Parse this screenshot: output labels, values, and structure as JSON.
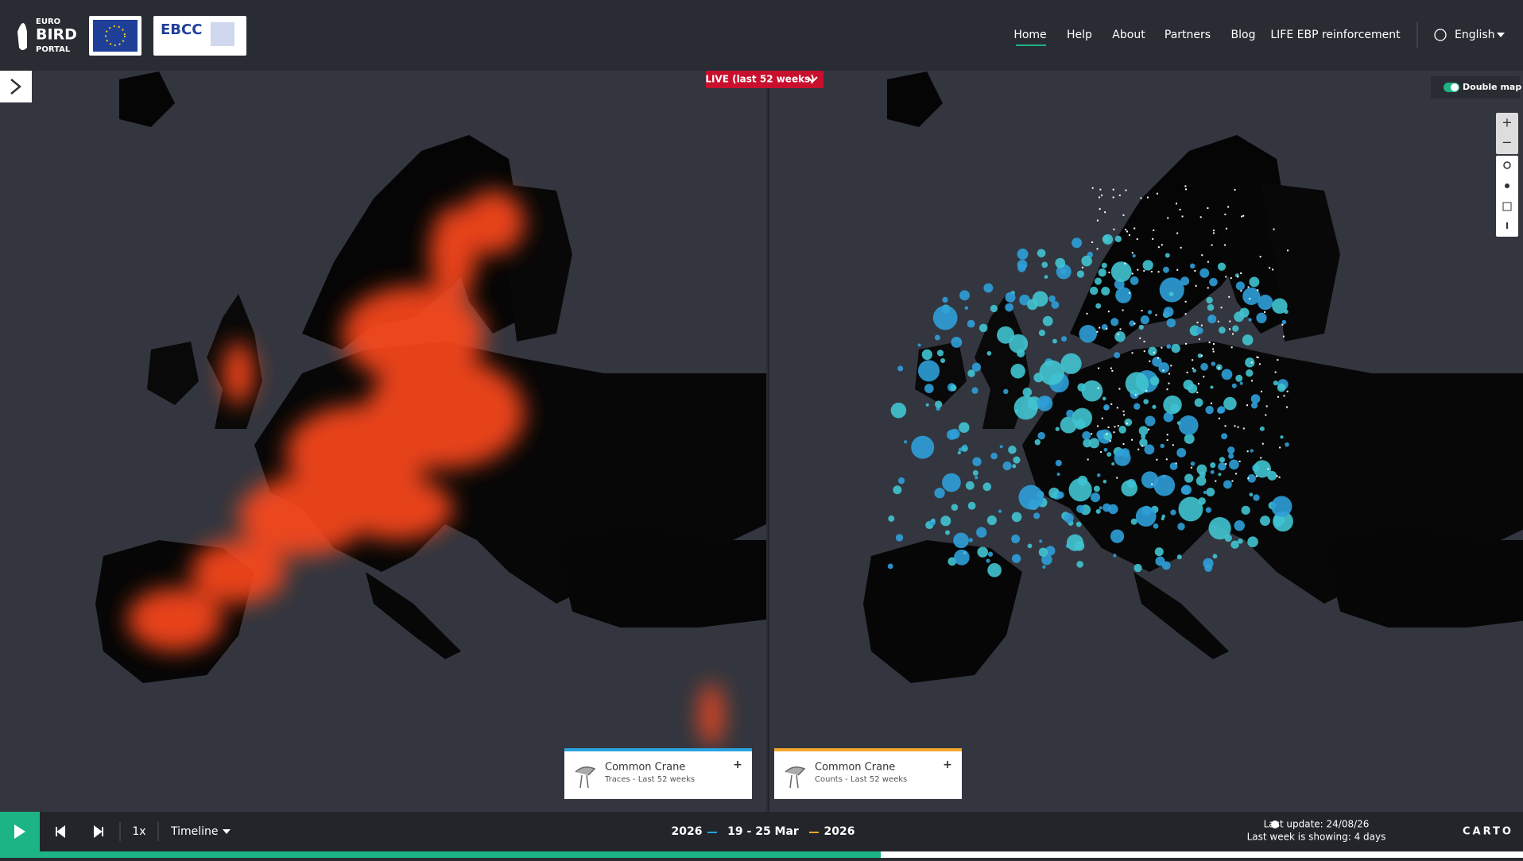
{
  "header": {
    "logo": {
      "line1": "EURO",
      "line2": "BIRD",
      "line3": "PORTAL"
    },
    "partner_logo": "EBCC",
    "nav": [
      "Home",
      "Help",
      "About",
      "Partners",
      "Blog",
      "LIFE EBP reinforcement"
    ],
    "language": "English"
  },
  "map": {
    "live_badge": "LIVE (last 52 weeks)",
    "double_map": "Double map"
  },
  "legends": [
    {
      "species": "Common Crane",
      "subtitle": "Traces - Last 52 weeks"
    },
    {
      "species": "Common Crane",
      "subtitle": "Counts - Last 52 weeks"
    }
  ],
  "footer": {
    "speed": "1x",
    "mode": "Timeline",
    "year_left": "2026",
    "week": "19 - 25 Mar",
    "year_right": "2026",
    "last_update": "Last update: 24/08/26",
    "last_week": "Last week is showing: 4 days",
    "attribution": "CARTO"
  }
}
